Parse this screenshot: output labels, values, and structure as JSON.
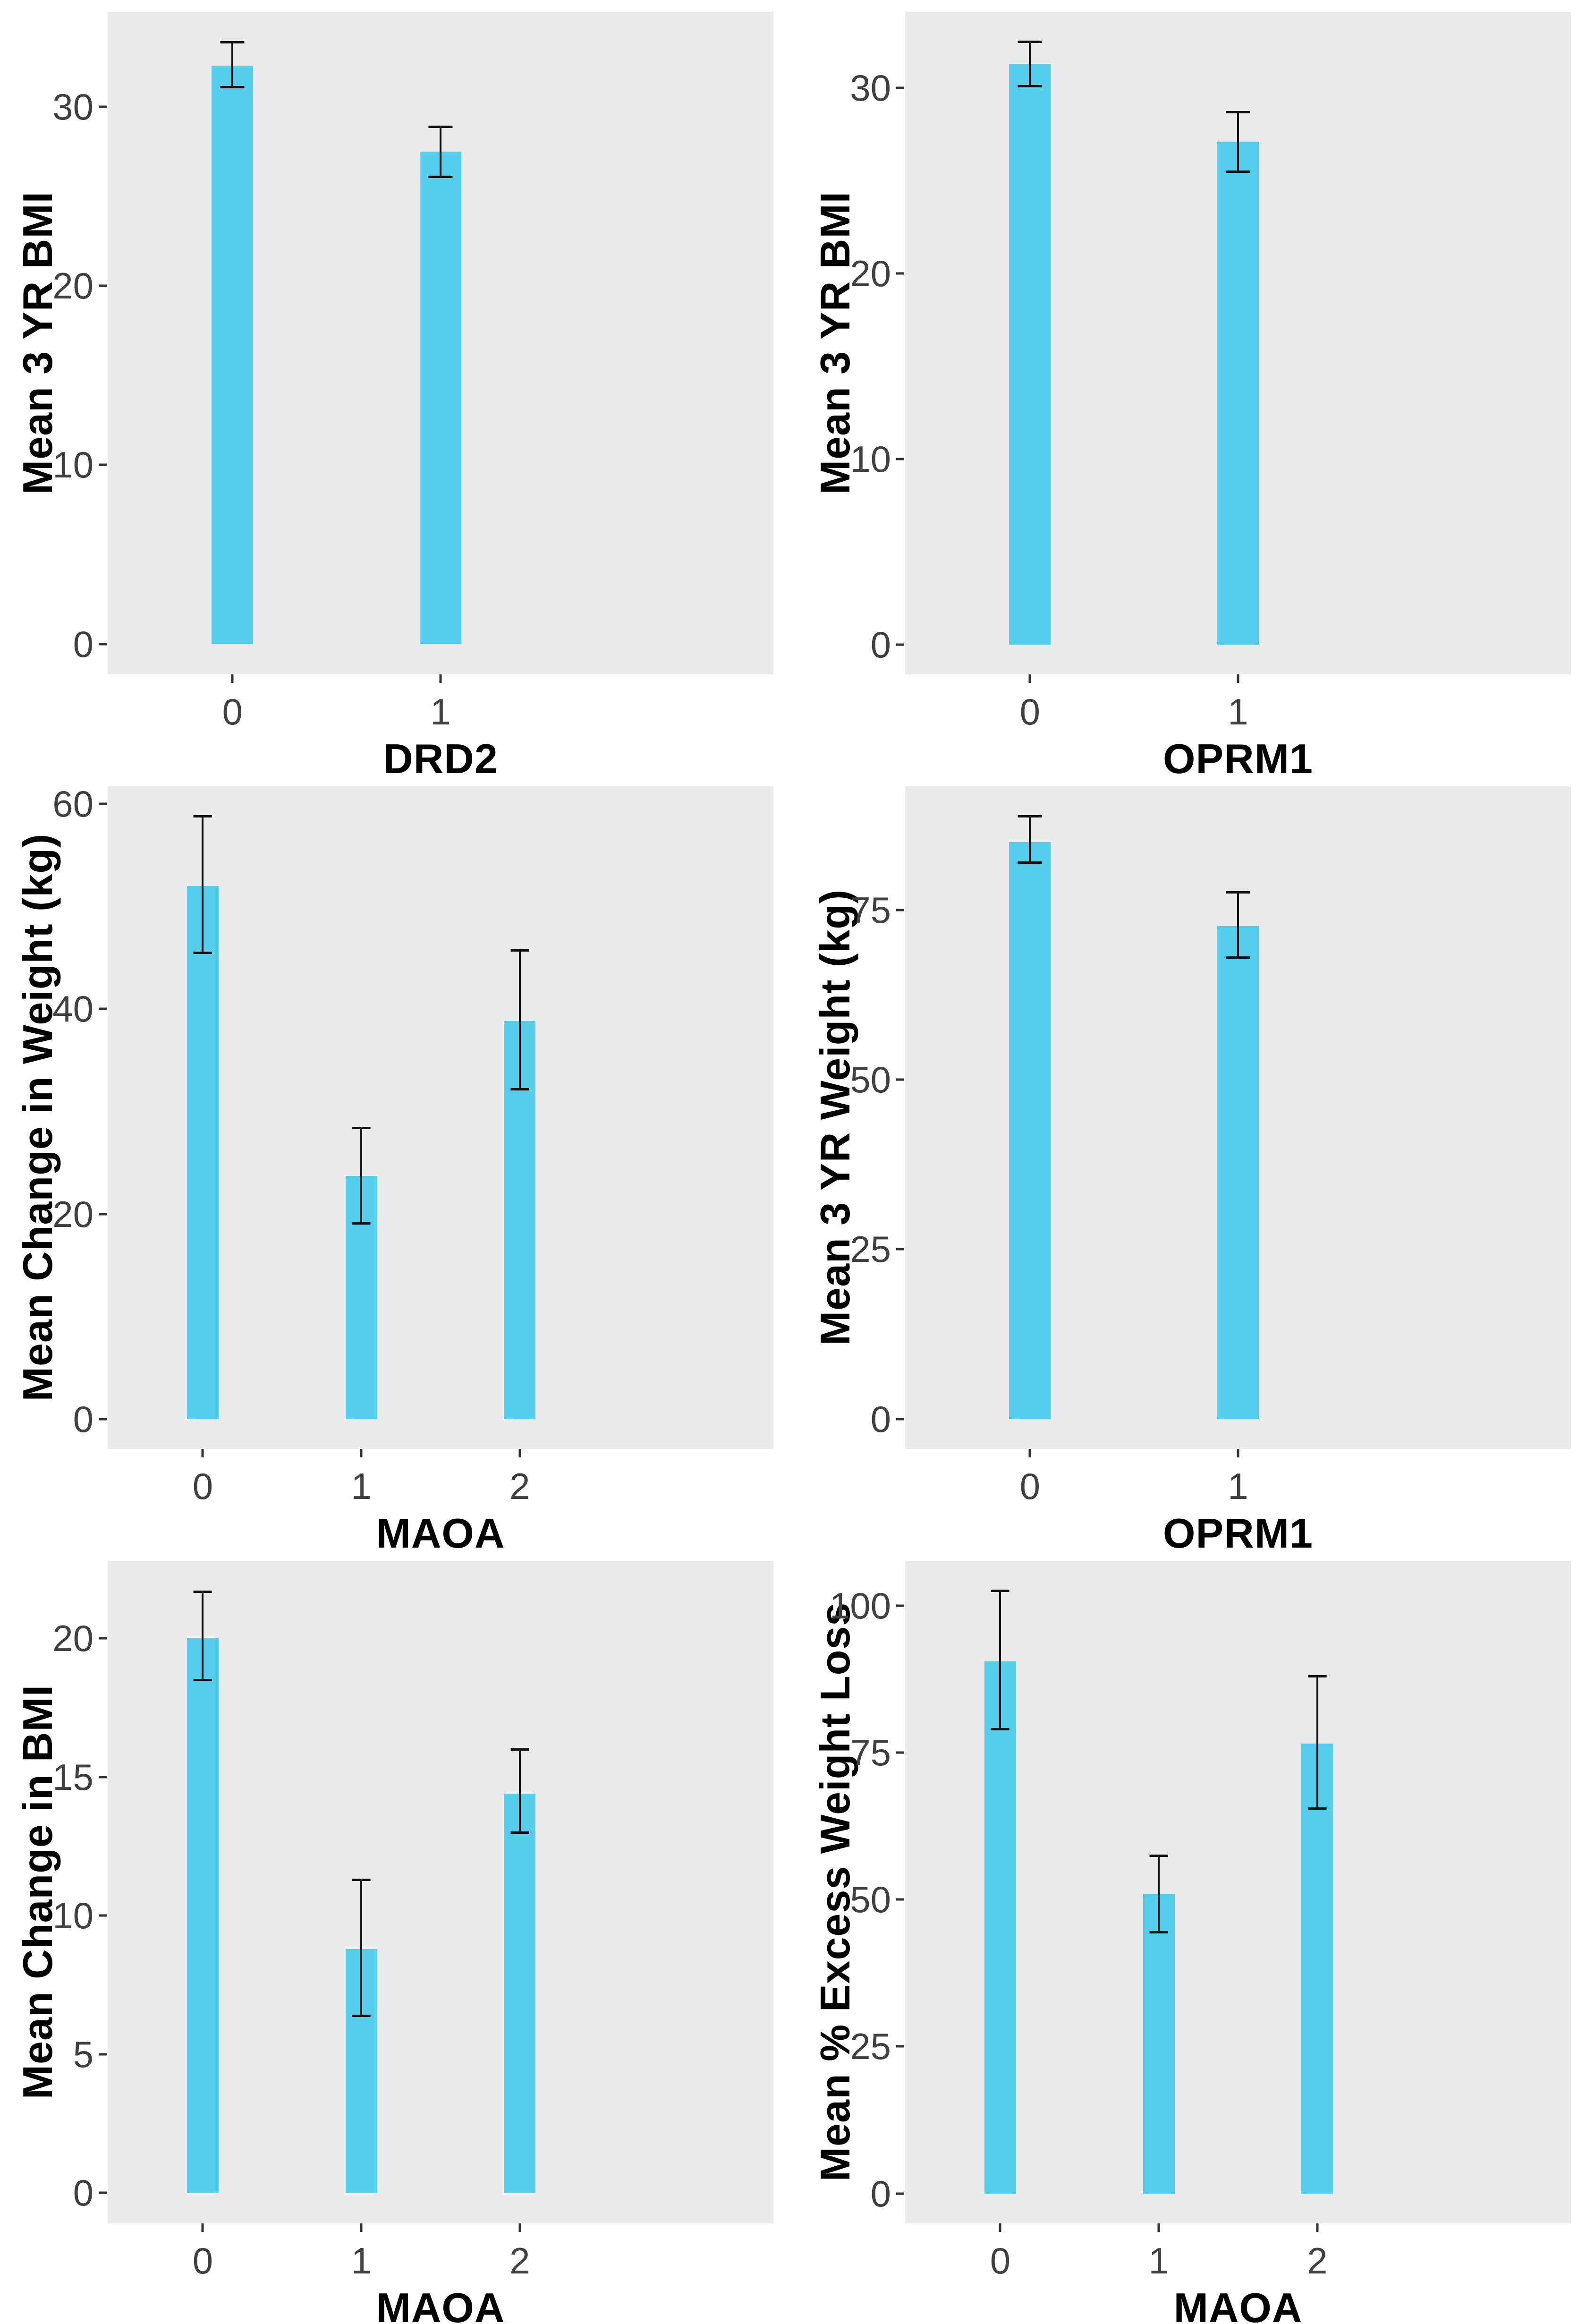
{
  "style": {
    "bar_color": "#55cdeb",
    "panel_background": "#ebebeb",
    "error_bar_color": "#111111",
    "tick_label_color": "#404040",
    "axis_title_color": "#000000",
    "page_background": "#ffffff"
  },
  "chart_data": [
    {
      "type": "bar",
      "position": "top-left",
      "title": "",
      "xlabel": "DRD2",
      "ylabel": "Mean 3 YR BMI",
      "categories": [
        "0",
        "1"
      ],
      "values": [
        32.3,
        27.5
      ],
      "error_low": [
        31.1,
        26.1
      ],
      "error_high": [
        33.6,
        28.9
      ],
      "yticks": [
        0,
        10,
        20,
        30
      ],
      "ylim": [
        -1.7,
        35.3
      ],
      "grid": false,
      "legend": false
    },
    {
      "type": "bar",
      "position": "top-right",
      "title": "",
      "xlabel": "OPRM1",
      "ylabel": "Mean 3 YR BMI",
      "categories": [
        "0",
        "1"
      ],
      "values": [
        31.3,
        27.1
      ],
      "error_low": [
        30.1,
        25.5
      ],
      "error_high": [
        32.5,
        28.7
      ],
      "yticks": [
        0,
        10,
        20,
        30
      ],
      "ylim": [
        -1.6,
        34.1
      ],
      "grid": false,
      "legend": false
    },
    {
      "type": "bar",
      "position": "middle-left",
      "title": "",
      "xlabel": "MAOA",
      "ylabel": "Mean Change in Weight (kg)",
      "categories": [
        "0",
        "1",
        "2"
      ],
      "values": [
        52.0,
        23.7,
        38.8
      ],
      "error_low": [
        45.5,
        19.1,
        32.2
      ],
      "error_high": [
        58.8,
        28.4,
        45.7
      ],
      "yticks": [
        0,
        20,
        40,
        60
      ],
      "ylim": [
        -2.9,
        61.7
      ],
      "grid": false,
      "legend": false
    },
    {
      "type": "bar",
      "position": "middle-right",
      "title": "",
      "xlabel": "OPRM1",
      "ylabel": "Mean 3 YR Weight (kg)",
      "categories": [
        "0",
        "1"
      ],
      "values": [
        85.0,
        72.6
      ],
      "error_low": [
        82.0,
        68.0
      ],
      "error_high": [
        88.8,
        77.6
      ],
      "yticks": [
        0,
        25,
        50,
        75
      ],
      "ylim": [
        -4.4,
        93.2
      ],
      "grid": false,
      "legend": false
    },
    {
      "type": "bar",
      "position": "bottom-left",
      "title": "",
      "xlabel": "MAOA",
      "ylabel": "Mean Change in BMI",
      "categories": [
        "0",
        "1",
        "2"
      ],
      "values": [
        20.0,
        8.8,
        14.4
      ],
      "error_low": [
        18.5,
        6.4,
        13.0
      ],
      "error_high": [
        21.7,
        11.3,
        16.0
      ],
      "yticks": [
        0,
        5,
        10,
        15,
        20
      ],
      "ylim": [
        -1.1,
        22.8
      ],
      "grid": false,
      "legend": false
    },
    {
      "type": "bar",
      "position": "bottom-right",
      "title": "",
      "xlabel": "MAOA",
      "ylabel": "Mean % Excess Weight Loss",
      "categories": [
        "0",
        "1",
        "2"
      ],
      "values": [
        90.5,
        51.0,
        76.5
      ],
      "error_low": [
        79.0,
        44.5,
        65.5
      ],
      "error_high": [
        102.5,
        57.5,
        88.0
      ],
      "yticks": [
        0,
        25,
        50,
        75,
        100
      ],
      "ylim": [
        -5.1,
        107.6
      ],
      "grid": false,
      "legend": false
    }
  ]
}
